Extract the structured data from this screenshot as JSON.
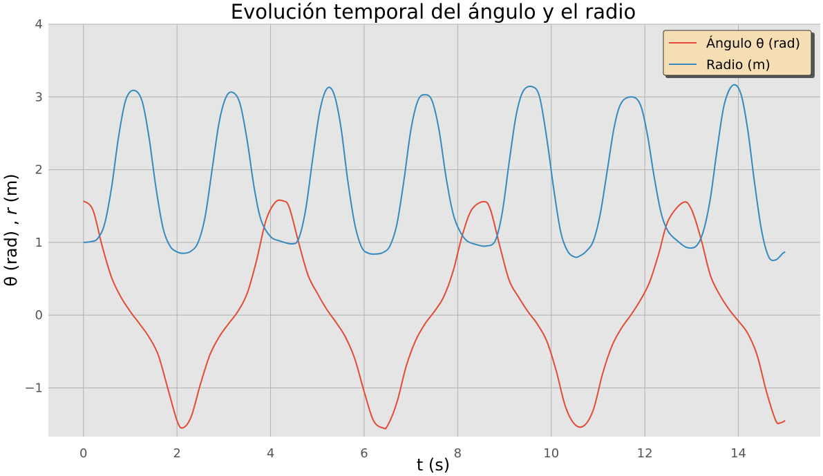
{
  "chart_data": {
    "type": "line",
    "title": "Evolución temporal del ángulo y el radio",
    "xlabel": "t (s)",
    "ylabel_prefix": "θ (rad)  , ",
    "ylabel_var": "r",
    "ylabel_suffix": " (m)",
    "xlim": [
      -0.75,
      15.75
    ],
    "ylim": [
      -1.67,
      4.0
    ],
    "xticks": [
      0,
      2,
      4,
      6,
      8,
      10,
      12,
      14
    ],
    "xtick_labels": [
      "0",
      "2",
      "4",
      "6",
      "8",
      "10",
      "12",
      "14"
    ],
    "yticks": [
      -1,
      0,
      1,
      2,
      3,
      4
    ],
    "ytick_labels": [
      "−1",
      "0",
      "1",
      "2",
      "3",
      "4"
    ],
    "grid": true,
    "legend_placement": "top-right",
    "legend_bg": "#f5deb3",
    "background": "#e5e5e5",
    "grid_color": "#b0b0b0",
    "series": [
      {
        "name": "Ángulo θ (rad)",
        "color": "#e24a33",
        "x": [
          0,
          0.2,
          0.4,
          0.6,
          0.8,
          1.0,
          1.2,
          1.4,
          1.6,
          1.8,
          2.0,
          2.12,
          2.3,
          2.5,
          2.7,
          2.9,
          3.1,
          3.3,
          3.5,
          3.7,
          3.9,
          4.1,
          4.27,
          4.4,
          4.6,
          4.8,
          5.0,
          5.2,
          5.4,
          5.6,
          5.8,
          6.0,
          6.2,
          6.4,
          6.5,
          6.7,
          6.9,
          7.1,
          7.3,
          7.5,
          7.7,
          7.9,
          8.1,
          8.3,
          8.56,
          8.7,
          8.9,
          9.1,
          9.3,
          9.5,
          9.7,
          9.9,
          10.1,
          10.3,
          10.5,
          10.7,
          10.9,
          11.1,
          11.3,
          11.5,
          11.7,
          11.9,
          12.1,
          12.3,
          12.5,
          12.82,
          13.0,
          13.2,
          13.4,
          13.6,
          13.8,
          14.0,
          14.2,
          14.4,
          14.6,
          14.8,
          14.9,
          15.0
        ],
        "y": [
          1.57,
          1.45,
          0.95,
          0.52,
          0.25,
          0.05,
          -0.12,
          -0.3,
          -0.55,
          -1.0,
          -1.45,
          -1.55,
          -1.4,
          -0.95,
          -0.55,
          -0.3,
          -0.12,
          0.05,
          0.3,
          0.75,
          1.3,
          1.55,
          1.57,
          1.48,
          1.0,
          0.55,
          0.3,
          0.08,
          -0.1,
          -0.3,
          -0.6,
          -1.05,
          -1.45,
          -1.55,
          -1.52,
          -1.2,
          -0.7,
          -0.35,
          -0.12,
          0.05,
          0.25,
          0.6,
          1.1,
          1.45,
          1.56,
          1.45,
          0.95,
          0.48,
          0.25,
          0.05,
          -0.12,
          -0.35,
          -0.75,
          -1.25,
          -1.5,
          -1.52,
          -1.3,
          -0.8,
          -0.42,
          -0.18,
          0.0,
          0.2,
          0.45,
          0.85,
          1.3,
          1.55,
          1.45,
          1.05,
          0.55,
          0.28,
          0.08,
          -0.08,
          -0.25,
          -0.55,
          -1.05,
          -1.45,
          -1.48,
          -1.45
        ]
      },
      {
        "name": "Radio (m)",
        "color": "#348abd",
        "x": [
          0,
          0.15,
          0.3,
          0.45,
          0.6,
          0.75,
          0.9,
          1.07,
          1.25,
          1.4,
          1.55,
          1.7,
          1.85,
          2.0,
          2.15,
          2.3,
          2.45,
          2.6,
          2.75,
          2.9,
          3.05,
          3.2,
          3.35,
          3.5,
          3.65,
          3.8,
          4.0,
          4.2,
          4.45,
          4.6,
          4.75,
          4.9,
          5.05,
          5.2,
          5.35,
          5.5,
          5.65,
          5.8,
          5.95,
          6.1,
          6.25,
          6.4,
          6.55,
          6.7,
          6.85,
          7.0,
          7.15,
          7.3,
          7.45,
          7.6,
          7.75,
          7.9,
          8.05,
          8.2,
          8.4,
          8.6,
          8.8,
          8.95,
          9.1,
          9.25,
          9.4,
          9.6,
          9.75,
          9.9,
          10.05,
          10.2,
          10.35,
          10.5,
          10.6,
          10.75,
          10.9,
          11.05,
          11.2,
          11.35,
          11.5,
          11.72,
          11.9,
          12.05,
          12.2,
          12.35,
          12.5,
          12.7,
          12.9,
          13.1,
          13.25,
          13.4,
          13.55,
          13.7,
          13.88,
          14.05,
          14.2,
          14.35,
          14.5,
          14.65,
          14.8,
          14.95,
          15.0
        ],
        "y": [
          1.0,
          1.01,
          1.05,
          1.25,
          1.75,
          2.45,
          2.95,
          3.09,
          2.95,
          2.45,
          1.75,
          1.2,
          0.95,
          0.87,
          0.85,
          0.88,
          1.0,
          1.35,
          2.0,
          2.65,
          3.0,
          3.06,
          2.9,
          2.4,
          1.75,
          1.3,
          1.08,
          1.02,
          0.98,
          1.05,
          1.45,
          2.15,
          2.8,
          3.11,
          3.05,
          2.6,
          1.85,
          1.25,
          0.93,
          0.85,
          0.84,
          0.86,
          0.95,
          1.25,
          1.85,
          2.55,
          2.95,
          3.03,
          2.95,
          2.55,
          1.9,
          1.4,
          1.15,
          1.02,
          0.97,
          0.95,
          1.02,
          1.4,
          2.1,
          2.75,
          3.08,
          3.14,
          3.0,
          2.45,
          1.75,
          1.15,
          0.88,
          0.8,
          0.81,
          0.88,
          1.02,
          1.4,
          2.0,
          2.6,
          2.92,
          3.0,
          2.9,
          2.5,
          1.9,
          1.4,
          1.15,
          1.02,
          0.93,
          0.95,
          1.15,
          1.6,
          2.3,
          2.9,
          3.16,
          3.05,
          2.55,
          1.8,
          1.15,
          0.8,
          0.76,
          0.85,
          0.87
        ]
      }
    ]
  }
}
